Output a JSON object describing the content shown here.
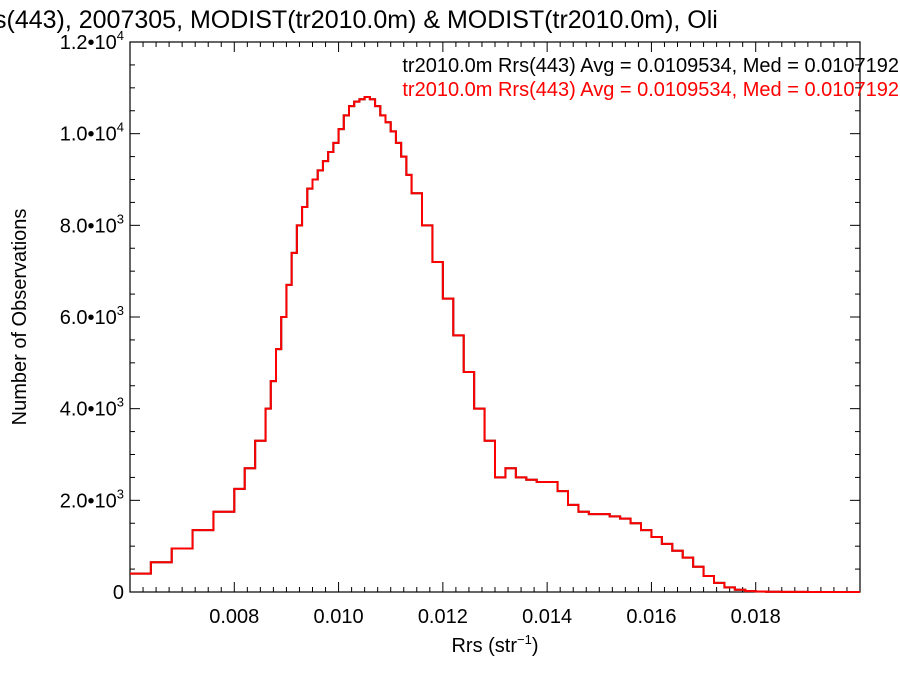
{
  "chart_data": {
    "type": "line",
    "title": "s(443), 2007305, MODIST(tr2010.0m) & MODIST(tr2010.0m), Oli",
    "xlabel_main": "Rrs (str",
    "xlabel_exp": "−1",
    "xlabel_tail": ")",
    "ylabel": "Number of Observations",
    "xlim": [
      0.006,
      0.02
    ],
    "ylim": [
      0,
      12000
    ],
    "x_ticks": [
      {
        "value": 0.008,
        "label": "0.008"
      },
      {
        "value": 0.01,
        "label": "0.010"
      },
      {
        "value": 0.012,
        "label": "0.012"
      },
      {
        "value": 0.014,
        "label": "0.014"
      },
      {
        "value": 0.016,
        "label": "0.016"
      },
      {
        "value": 0.018,
        "label": "0.018"
      }
    ],
    "y_ticks": [
      {
        "value": 0,
        "mantissa": "0",
        "exp": ""
      },
      {
        "value": 2000,
        "mantissa": "2.0•10",
        "exp": "3"
      },
      {
        "value": 4000,
        "mantissa": "4.0•10",
        "exp": "3"
      },
      {
        "value": 6000,
        "mantissa": "6.0•10",
        "exp": "3"
      },
      {
        "value": 8000,
        "mantissa": "8.0•10",
        "exp": "3"
      },
      {
        "value": 10000,
        "mantissa": "1.0•10",
        "exp": "4"
      },
      {
        "value": 12000,
        "mantissa": "1.2•10",
        "exp": "4"
      }
    ],
    "legend_position": "top-right",
    "series": [
      {
        "name": "tr2010.0m Rrs(443) Avg = 0.0109534, Med = 0.0107192",
        "color": "#000000",
        "x": [
          0.006,
          0.0064,
          0.0068,
          0.0072,
          0.0076,
          0.008,
          0.0082,
          0.0084,
          0.0086,
          0.0087,
          0.0088,
          0.0089,
          0.009,
          0.0091,
          0.0092,
          0.0093,
          0.0094,
          0.0095,
          0.0096,
          0.0097,
          0.0098,
          0.0099,
          0.01,
          0.0101,
          0.0102,
          0.0103,
          0.0104,
          0.0105,
          0.0106,
          0.0107,
          0.0108,
          0.0109,
          0.011,
          0.0111,
          0.0112,
          0.0113,
          0.0114,
          0.0116,
          0.0118,
          0.012,
          0.0122,
          0.0124,
          0.0126,
          0.0128,
          0.013,
          0.0132,
          0.0134,
          0.0136,
          0.0138,
          0.014,
          0.0142,
          0.0144,
          0.0146,
          0.0148,
          0.015,
          0.0152,
          0.0154,
          0.0156,
          0.0158,
          0.016,
          0.0162,
          0.0164,
          0.0166,
          0.0168,
          0.017,
          0.0172,
          0.0174,
          0.0176,
          0.0178,
          0.018,
          0.0182,
          0.0185,
          0.019,
          0.02
        ],
        "values": [
          400,
          650,
          950,
          1350,
          1750,
          2250,
          2700,
          3300,
          4000,
          4600,
          5300,
          6000,
          6700,
          7400,
          8000,
          8400,
          8800,
          9000,
          9200,
          9400,
          9600,
          9800,
          10100,
          10400,
          10600,
          10700,
          10750,
          10800,
          10750,
          10600,
          10400,
          10250,
          10050,
          9800,
          9500,
          9100,
          8700,
          8000,
          7200,
          6400,
          5600,
          4800,
          4000,
          3300,
          2500,
          2700,
          2500,
          2450,
          2400,
          2400,
          2200,
          1900,
          1750,
          1700,
          1700,
          1650,
          1600,
          1500,
          1350,
          1200,
          1050,
          900,
          750,
          550,
          350,
          200,
          100,
          50,
          20,
          10,
          5,
          2,
          0,
          0
        ]
      },
      {
        "name": "tr2010.0m Rrs(443) Avg = 0.0109534, Med = 0.0107192",
        "color": "#ff0000",
        "x": [
          0.006,
          0.0064,
          0.0068,
          0.0072,
          0.0076,
          0.008,
          0.0082,
          0.0084,
          0.0086,
          0.0087,
          0.0088,
          0.0089,
          0.009,
          0.0091,
          0.0092,
          0.0093,
          0.0094,
          0.0095,
          0.0096,
          0.0097,
          0.0098,
          0.0099,
          0.01,
          0.0101,
          0.0102,
          0.0103,
          0.0104,
          0.0105,
          0.0106,
          0.0107,
          0.0108,
          0.0109,
          0.011,
          0.0111,
          0.0112,
          0.0113,
          0.0114,
          0.0116,
          0.0118,
          0.012,
          0.0122,
          0.0124,
          0.0126,
          0.0128,
          0.013,
          0.0132,
          0.0134,
          0.0136,
          0.0138,
          0.014,
          0.0142,
          0.0144,
          0.0146,
          0.0148,
          0.015,
          0.0152,
          0.0154,
          0.0156,
          0.0158,
          0.016,
          0.0162,
          0.0164,
          0.0166,
          0.0168,
          0.017,
          0.0172,
          0.0174,
          0.0176,
          0.0178,
          0.018,
          0.0182,
          0.0185,
          0.019,
          0.02
        ],
        "values": [
          400,
          650,
          950,
          1350,
          1750,
          2250,
          2700,
          3300,
          4000,
          4600,
          5300,
          6000,
          6700,
          7400,
          8000,
          8400,
          8800,
          9000,
          9200,
          9400,
          9600,
          9800,
          10100,
          10400,
          10600,
          10700,
          10750,
          10800,
          10750,
          10600,
          10400,
          10250,
          10050,
          9800,
          9500,
          9100,
          8700,
          8000,
          7200,
          6400,
          5600,
          4800,
          4000,
          3300,
          2500,
          2700,
          2500,
          2450,
          2400,
          2400,
          2200,
          1900,
          1750,
          1700,
          1700,
          1650,
          1600,
          1500,
          1350,
          1200,
          1050,
          900,
          750,
          550,
          350,
          200,
          100,
          50,
          20,
          10,
          5,
          2,
          0,
          0
        ]
      }
    ]
  }
}
